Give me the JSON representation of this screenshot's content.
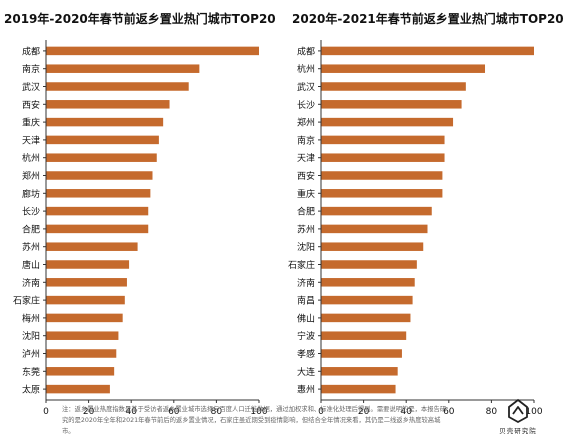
{
  "colors": {
    "bar": "#c56a2d",
    "axis": "#333333",
    "grid": "#bbbbbb"
  },
  "chart_data": [
    {
      "type": "bar",
      "orientation": "horizontal",
      "title": "2019年-2020年春节前返乡置业热门城市TOP20",
      "categories": [
        "成都",
        "南京",
        "武汉",
        "西安",
        "重庆",
        "天津",
        "杭州",
        "郑州",
        "廊坊",
        "长沙",
        "合肥",
        "苏州",
        "唐山",
        "济南",
        "石家庄",
        "梅州",
        "沈阳",
        "泸州",
        "东莞",
        "太原"
      ],
      "values": [
        100,
        72,
        67,
        58,
        55,
        53,
        52,
        50,
        49,
        48,
        48,
        43,
        39,
        38,
        37,
        36,
        34,
        33,
        32,
        30
      ],
      "xlim": [
        0,
        100
      ],
      "xticks": [
        "0",
        "20",
        "40",
        "60",
        "80",
        "100"
      ],
      "grid": false
    },
    {
      "type": "bar",
      "orientation": "horizontal",
      "title": "2020年-2021年春节前返乡置业热门城市TOP20",
      "categories": [
        "成都",
        "杭州",
        "武汉",
        "长沙",
        "郑州",
        "南京",
        "天津",
        "西安",
        "重庆",
        "合肥",
        "苏州",
        "沈阳",
        "石家庄",
        "济南",
        "南昌",
        "佛山",
        "宁波",
        "孝感",
        "大连",
        "惠州"
      ],
      "values": [
        100,
        77,
        68,
        66,
        62,
        58,
        58,
        57,
        57,
        52,
        50,
        48,
        45,
        44,
        43,
        42,
        40,
        38,
        36,
        35
      ],
      "xlim": [
        0,
        100
      ],
      "xticks": [
        "0",
        "20",
        "40",
        "60",
        "80",
        "100"
      ],
      "grid": false
    }
  ],
  "footnote": "注：返乡置业热度指数是基于受访者返乡置业城市选择与百度人口迁徙数据，通过加权求和、标准化处理后得到。需要说明的是，本报告研究的是2020年全年和2021年春节前后的返乡置业情况，石家庄虽近期受到疫情影响，但结合全年情况来看，其仍是二线返乡热度较高城市。",
  "logo": {
    "name": "贝壳研究院"
  }
}
